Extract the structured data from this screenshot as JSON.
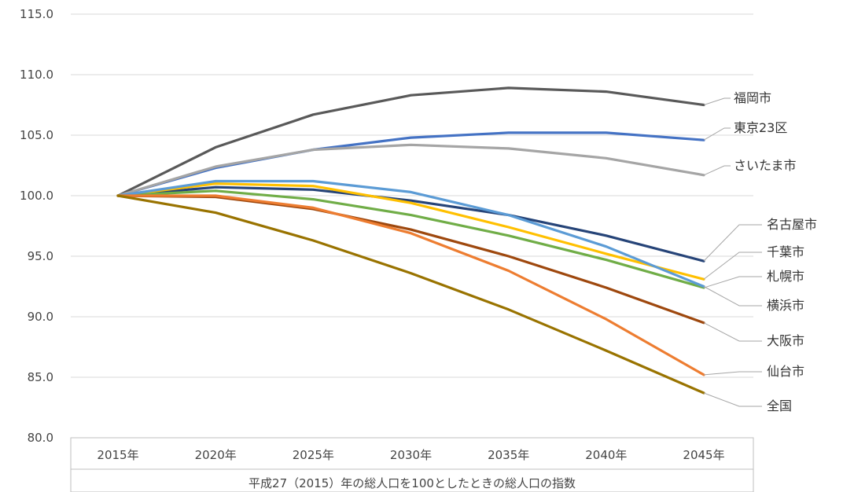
{
  "chart_data": {
    "type": "line",
    "categories": [
      "2015年",
      "2020年",
      "2025年",
      "2030年",
      "2035年",
      "2040年",
      "2045年"
    ],
    "ylim": [
      80,
      115
    ],
    "yticks": [
      "80.0",
      "85.0",
      "90.0",
      "95.0",
      "100.0",
      "105.0",
      "110.0",
      "115.0"
    ],
    "xlabel": "平成27（2015）年の総人口を100としたときの総人口の指数",
    "ylabel": "",
    "grid": "horizontal",
    "series": [
      {
        "name": "福岡市",
        "color": "#595959",
        "values": [
          100,
          104.0,
          106.7,
          108.3,
          108.9,
          108.6,
          107.5
        ]
      },
      {
        "name": "東京23区",
        "color": "#4472c4",
        "values": [
          100,
          102.3,
          103.8,
          104.8,
          105.2,
          105.2,
          104.6
        ]
      },
      {
        "name": "さいたま市",
        "color": "#a5a5a5",
        "values": [
          100,
          102.4,
          103.8,
          104.2,
          103.9,
          103.1,
          101.7
        ]
      },
      {
        "name": "名古屋市",
        "color": "#264478",
        "values": [
          100,
          100.7,
          100.5,
          99.6,
          98.4,
          96.7,
          94.6
        ]
      },
      {
        "name": "千葉市",
        "color": "#ffc000",
        "values": [
          100,
          101.0,
          100.8,
          99.4,
          97.4,
          95.2,
          93.1
        ]
      },
      {
        "name": "札幌市",
        "color": "#70ad47",
        "values": [
          100,
          100.4,
          99.7,
          98.4,
          96.7,
          94.7,
          92.4
        ]
      },
      {
        "name": "横浜市",
        "color": "#5b9bd5",
        "values": [
          100,
          101.2,
          101.2,
          100.3,
          98.4,
          95.8,
          92.5
        ]
      },
      {
        "name": "大阪市",
        "color": "#9e480e",
        "values": [
          100,
          99.9,
          98.9,
          97.2,
          95.0,
          92.4,
          89.5
        ]
      },
      {
        "name": "仙台市",
        "color": "#ed7d31",
        "values": [
          100,
          100.0,
          99.0,
          96.9,
          93.8,
          89.8,
          85.2
        ]
      },
      {
        "name": "全国",
        "color": "#997300",
        "values": [
          100,
          98.6,
          96.3,
          93.6,
          90.6,
          87.2,
          83.7
        ]
      }
    ]
  }
}
